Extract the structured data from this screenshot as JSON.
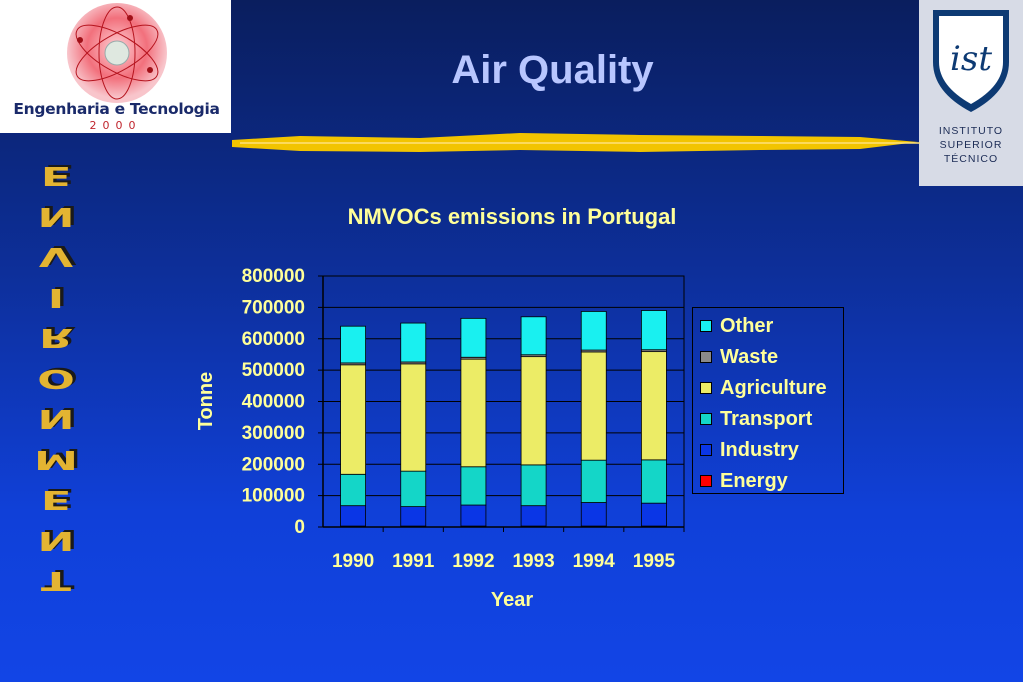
{
  "slide": {
    "title": "Air Quality",
    "side_text": "ENVIRONMENT"
  },
  "logo_left": {
    "name": "Engenharia e Tecnologia",
    "year": "2000"
  },
  "logo_right": {
    "lines": [
      "INSTITUTO",
      "SUPERIOR",
      "TÉCNICO"
    ]
  },
  "colors": {
    "title": "#b8c6ff",
    "chart_text": "#ffff99",
    "accent_bar": "#f2c400"
  },
  "chart_data": {
    "type": "bar",
    "stacked": true,
    "title": "NMVOCs emissions in Portugal",
    "xlabel": "Year",
    "ylabel": "Tonne",
    "ylim": [
      0,
      800000
    ],
    "yticks": [
      "800000",
      "700000",
      "600000",
      "500000",
      "400000",
      "300000",
      "200000",
      "100000",
      "0"
    ],
    "categories": [
      "1990",
      "1991",
      "1992",
      "1993",
      "1994",
      "1995"
    ],
    "grid": true,
    "legend_position": "right",
    "series": [
      {
        "name": "Energy",
        "color": "#ff0000",
        "values": [
          3000,
          3000,
          3000,
          3000,
          3000,
          3000
        ]
      },
      {
        "name": "Industry",
        "color": "#0a36e6",
        "values": [
          65000,
          62000,
          67000,
          65000,
          75000,
          73000
        ]
      },
      {
        "name": "Transport",
        "color": "#14d6c8",
        "values": [
          100000,
          113000,
          122000,
          130000,
          135000,
          138000
        ]
      },
      {
        "name": "Agriculture",
        "color": "#ecec66",
        "values": [
          349000,
          342000,
          343000,
          345000,
          345000,
          345000
        ]
      },
      {
        "name": "Waste",
        "color": "#8a8a8a",
        "values": [
          6000,
          6000,
          6000,
          6000,
          6000,
          6000
        ]
      },
      {
        "name": "Other",
        "color": "#19f0f0",
        "values": [
          117000,
          124000,
          124000,
          121000,
          123000,
          125000
        ]
      }
    ]
  }
}
